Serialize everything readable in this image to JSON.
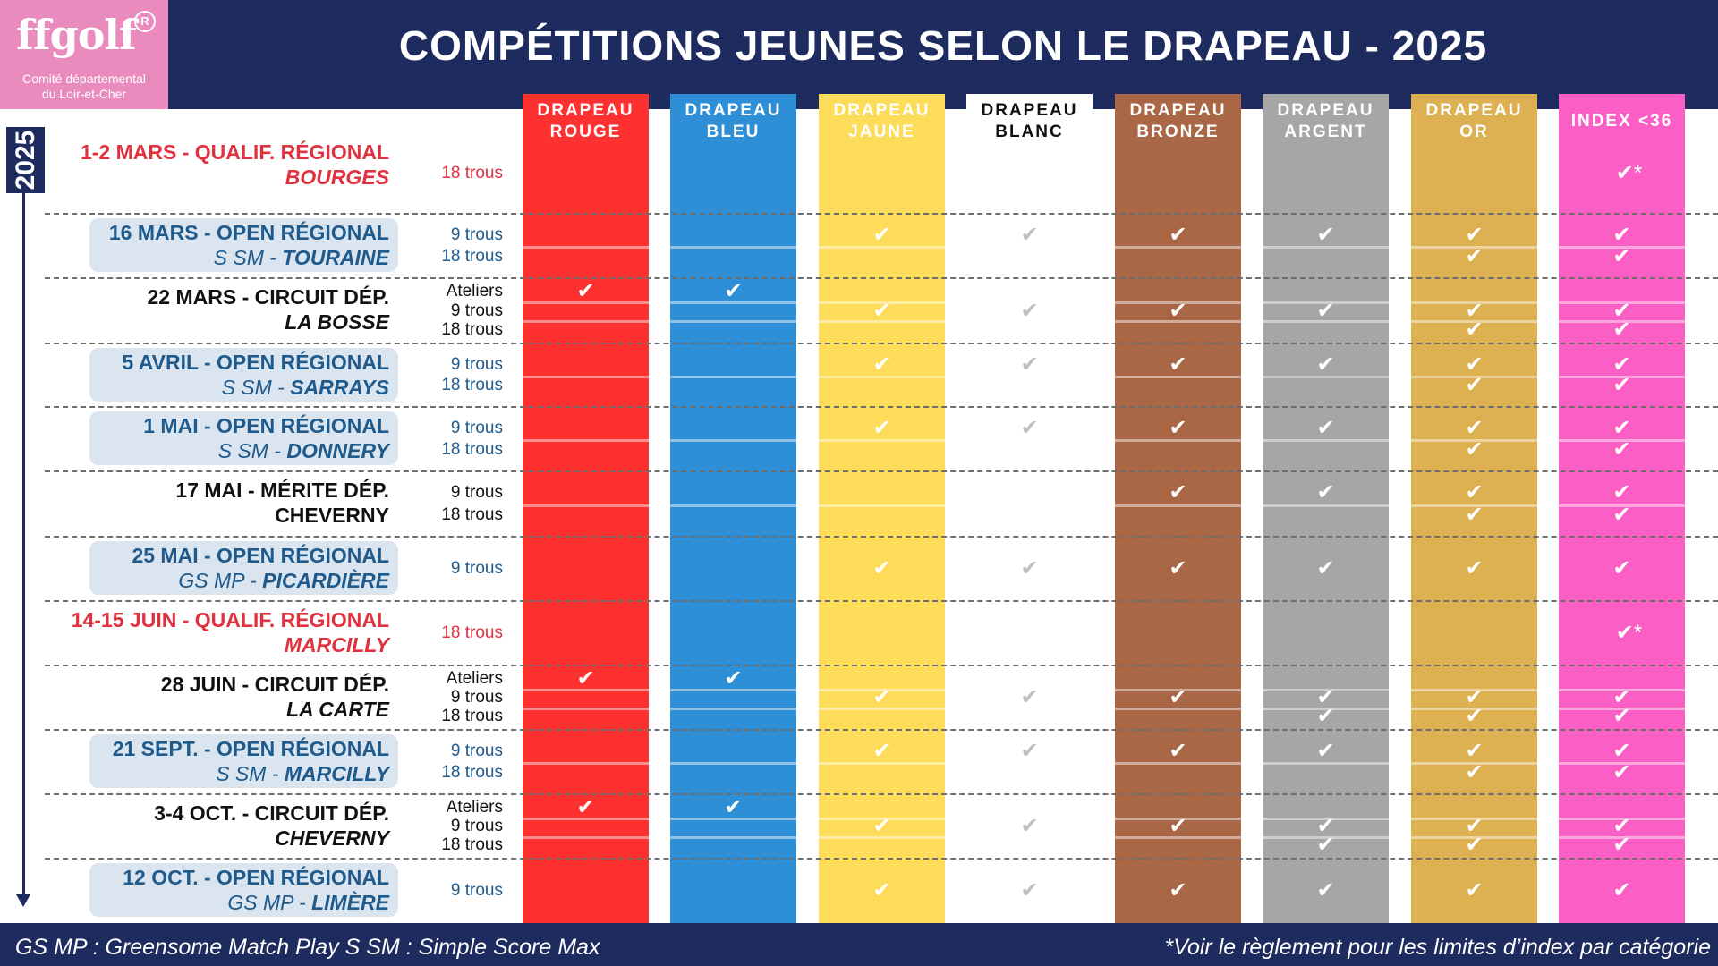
{
  "logo": {
    "brand": "ffgolf",
    "reg": "R",
    "line1": "Comité départemental",
    "line2": "du Loir-et-Cher"
  },
  "title": "COMPÉTITIONS  JEUNES SELON LE DRAPEAU - 2025",
  "year": "2025",
  "icon_check": "check-icon",
  "columns": [
    {
      "l1": "DRAPEAU",
      "l2": "ROUGE",
      "color": "#fe3131",
      "text": "#ffffff"
    },
    {
      "l1": "DRAPEAU",
      "l2": "BLEU",
      "color": "#2e8fd6",
      "text": "#ffffff"
    },
    {
      "l1": "DRAPEAU",
      "l2": "JAUNE",
      "color": "#fddc5a",
      "text": "#ffffff"
    },
    {
      "l1": "DRAPEAU",
      "l2": "BLANC",
      "color": "#ffffff",
      "text": "#111111"
    },
    {
      "l1": "DRAPEAU",
      "l2": "BRONZE",
      "color": "#a96746",
      "text": "#ffffff"
    },
    {
      "l1": "DRAPEAU",
      "l2": "ARGENT",
      "color": "#a6a6a6",
      "text": "#ffffff"
    },
    {
      "l1": "DRAPEAU",
      "l2": "OR",
      "color": "#ddb051",
      "text": "#ffffff"
    },
    {
      "l1": "INDEX <36",
      "l2": "",
      "color": "#fb5fc5",
      "text": "#ffffff"
    }
  ],
  "events": [
    {
      "name": "1-2 MARS - QUALIF. RÉGIONAL",
      "place_prefix": "",
      "place": "BOURGES",
      "style": "red",
      "formats": [
        {
          "label": "18 trous",
          "checks": [
            0,
            0,
            0,
            0,
            0,
            0,
            0,
            2
          ]
        }
      ]
    },
    {
      "name": "16 MARS - OPEN RÉGIONAL",
      "place_prefix": "S SM - ",
      "place": "TOURAINE",
      "style": "blue",
      "formats": [
        {
          "label": "9 trous",
          "checks": [
            0,
            0,
            1,
            1,
            1,
            1,
            1,
            1
          ]
        },
        {
          "label": "18 trous",
          "checks": [
            0,
            0,
            0,
            0,
            0,
            0,
            1,
            1
          ]
        }
      ]
    },
    {
      "name": "22 MARS - CIRCUIT DÉP.",
      "place_prefix": "",
      "place": "LA BOSSE",
      "style": "black",
      "formats": [
        {
          "label": "Ateliers",
          "checks": [
            1,
            1,
            0,
            0,
            0,
            0,
            0,
            0
          ]
        },
        {
          "label": "9 trous",
          "checks": [
            0,
            0,
            1,
            1,
            1,
            1,
            1,
            1
          ]
        },
        {
          "label": "18 trous",
          "checks": [
            0,
            0,
            0,
            0,
            0,
            0,
            1,
            1
          ]
        }
      ]
    },
    {
      "name": "5 AVRIL - OPEN RÉGIONAL",
      "place_prefix": "S SM - ",
      "place": "SARRAYS",
      "style": "blue",
      "formats": [
        {
          "label": "9 trous",
          "checks": [
            0,
            0,
            1,
            1,
            1,
            1,
            1,
            1
          ]
        },
        {
          "label": "18 trous",
          "checks": [
            0,
            0,
            0,
            0,
            0,
            0,
            1,
            1
          ]
        }
      ]
    },
    {
      "name": "1 MAI - OPEN RÉGIONAL",
      "place_prefix": "S SM - ",
      "place": "DONNERY",
      "style": "blue",
      "formats": [
        {
          "label": "9 trous",
          "checks": [
            0,
            0,
            1,
            1,
            1,
            1,
            1,
            1
          ]
        },
        {
          "label": "18 trous",
          "checks": [
            0,
            0,
            0,
            0,
            0,
            0,
            1,
            1
          ]
        }
      ]
    },
    {
      "name": "17 MAI - MÉRITE DÉP.",
      "place_prefix": "",
      "place": "CHEVERNY",
      "style": "black-upright",
      "formats": [
        {
          "label": "9 trous",
          "checks": [
            0,
            0,
            0,
            0,
            1,
            1,
            1,
            1
          ]
        },
        {
          "label": "18 trous",
          "checks": [
            0,
            0,
            0,
            0,
            0,
            0,
            1,
            1
          ]
        }
      ]
    },
    {
      "name": "25 MAI - OPEN RÉGIONAL",
      "place_prefix": "GS MP - ",
      "place": "PICARDIÈRE",
      "style": "blue",
      "formats": [
        {
          "label": "9 trous",
          "checks": [
            0,
            0,
            1,
            1,
            1,
            1,
            1,
            1
          ]
        }
      ]
    },
    {
      "name": "14-15 JUIN - QUALIF. RÉGIONAL",
      "place_prefix": "",
      "place": "MARCILLY",
      "style": "red",
      "formats": [
        {
          "label": "18 trous",
          "checks": [
            0,
            0,
            0,
            0,
            0,
            0,
            0,
            2
          ]
        }
      ]
    },
    {
      "name": "28 JUIN - CIRCUIT DÉP.",
      "place_prefix": "",
      "place": "LA CARTE",
      "style": "black",
      "formats": [
        {
          "label": "Ateliers",
          "checks": [
            1,
            1,
            0,
            0,
            0,
            0,
            0,
            0
          ]
        },
        {
          "label": "9 trous",
          "checks": [
            0,
            0,
            1,
            1,
            1,
            1,
            1,
            1
          ]
        },
        {
          "label": "18 trous",
          "checks": [
            0,
            0,
            0,
            0,
            0,
            1,
            1,
            1
          ]
        }
      ]
    },
    {
      "name": "21 SEPT. - OPEN RÉGIONAL",
      "place_prefix": "S SM - ",
      "place": "MARCILLY",
      "style": "blue",
      "formats": [
        {
          "label": "9 trous",
          "checks": [
            0,
            0,
            1,
            1,
            1,
            1,
            1,
            1
          ]
        },
        {
          "label": "18 trous",
          "checks": [
            0,
            0,
            0,
            0,
            0,
            0,
            1,
            1
          ]
        }
      ]
    },
    {
      "name": "3-4 OCT. - CIRCUIT DÉP.",
      "place_prefix": "",
      "place": "CHEVERNY",
      "style": "black",
      "formats": [
        {
          "label": "Ateliers",
          "checks": [
            1,
            1,
            0,
            0,
            0,
            0,
            0,
            0
          ]
        },
        {
          "label": "9 trous",
          "checks": [
            0,
            0,
            1,
            1,
            1,
            1,
            1,
            1
          ]
        },
        {
          "label": "18 trous",
          "checks": [
            0,
            0,
            0,
            0,
            0,
            1,
            1,
            1
          ]
        }
      ]
    },
    {
      "name": "12 OCT. - OPEN RÉGIONAL",
      "place_prefix": "GS MP - ",
      "place": "LIMÈRE",
      "style": "blue",
      "formats": [
        {
          "label": "9 trous",
          "checks": [
            0,
            0,
            1,
            1,
            1,
            1,
            1,
            1
          ]
        }
      ]
    }
  ],
  "footer": {
    "left": "GS MP : Greensome Match Play     S SM : Simple Score Max",
    "right": "*Voir le règlement pour les limites d’index par catégorie"
  }
}
